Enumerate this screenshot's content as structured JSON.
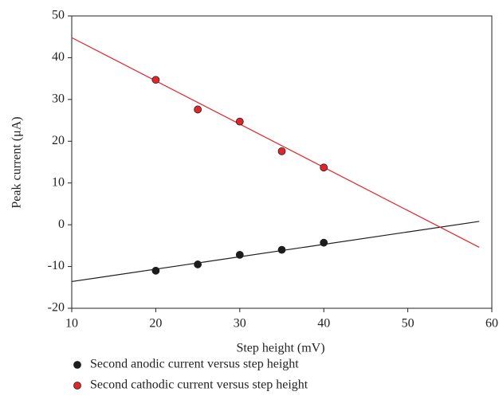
{
  "chart_data": {
    "type": "scatter",
    "xlabel": "Step height (mV)",
    "ylabel": "Peak current (μA)",
    "xlim": [
      10,
      60
    ],
    "xticks": [
      10,
      20,
      30,
      40,
      50,
      60
    ],
    "ylim": [
      -20,
      50
    ],
    "yticks": [
      -20,
      -10,
      0,
      10,
      20,
      30,
      40,
      50
    ],
    "legend": "bottom",
    "series": [
      {
        "name": "Second anodic current versus step height",
        "color": "#1c1c1c",
        "x": [
          20,
          25,
          30,
          35,
          40
        ],
        "values": [
          -11,
          -9.5,
          -7.2,
          -6,
          -4.3
        ]
      },
      {
        "name": "Second cathodic current versus step height",
        "color": "#e0262b",
        "x": [
          20,
          25,
          30,
          35,
          40
        ],
        "values": [
          34.7,
          27.6,
          24.7,
          17.6,
          13.7
        ]
      }
    ],
    "trend_lines": [
      {
        "color": "#1c1c1c",
        "x": [
          10,
          58.5
        ],
        "values": [
          -13.6,
          0.8
        ]
      },
      {
        "color": "#e0262b",
        "x": [
          10,
          58.5
        ],
        "values": [
          44.8,
          -5.4
        ]
      }
    ]
  }
}
